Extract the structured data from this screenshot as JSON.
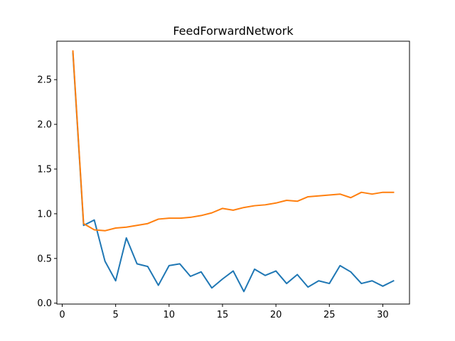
{
  "chart_data": {
    "type": "line",
    "title": "FeedForwardNetwork",
    "xlabel": "",
    "ylabel": "",
    "xlim": [
      -0.5,
      32.5
    ],
    "ylim": [
      -0.01,
      2.93
    ],
    "xticks": [
      0,
      5,
      10,
      15,
      20,
      25,
      30
    ],
    "yticks": [
      0.0,
      0.5,
      1.0,
      1.5,
      2.0,
      2.5
    ],
    "ytick_labels": [
      "0.0",
      "0.5",
      "1.0",
      "1.5",
      "2.0",
      "2.5"
    ],
    "grid": false,
    "legend": null,
    "x": [
      1,
      2,
      3,
      4,
      5,
      6,
      7,
      8,
      9,
      10,
      11,
      12,
      13,
      14,
      15,
      16,
      17,
      18,
      19,
      20,
      21,
      22,
      23,
      24,
      25,
      26,
      27,
      28,
      29,
      30,
      31
    ],
    "series": [
      {
        "color": "#1f77b4",
        "values": [
          2.8,
          0.87,
          0.93,
          0.47,
          0.25,
          0.73,
          0.44,
          0.41,
          0.2,
          0.42,
          0.44,
          0.3,
          0.35,
          0.17,
          0.27,
          0.36,
          0.13,
          0.38,
          0.31,
          0.36,
          0.22,
          0.32,
          0.18,
          0.25,
          0.22,
          0.42,
          0.35,
          0.22,
          0.25,
          0.19,
          0.25
        ]
      },
      {
        "color": "#ff7f0e",
        "values": [
          2.82,
          0.89,
          0.82,
          0.81,
          0.84,
          0.85,
          0.87,
          0.89,
          0.94,
          0.95,
          0.95,
          0.96,
          0.98,
          1.01,
          1.06,
          1.04,
          1.07,
          1.09,
          1.1,
          1.12,
          1.15,
          1.14,
          1.19,
          1.2,
          1.21,
          1.22,
          1.18,
          1.24,
          1.22,
          1.24,
          1.24
        ]
      }
    ]
  }
}
